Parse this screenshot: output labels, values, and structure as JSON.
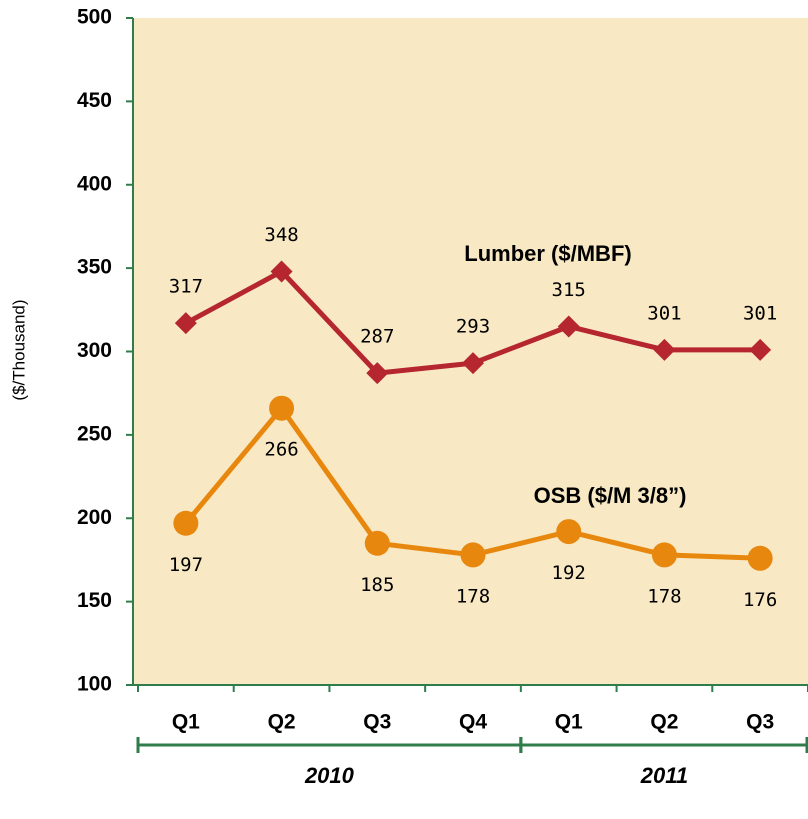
{
  "chart_data": {
    "type": "line",
    "y_axis_label": "($/Thousand)",
    "categories": [
      "Q1",
      "Q2",
      "Q3",
      "Q4",
      "Q1",
      "Q2",
      "Q3"
    ],
    "year_groups": [
      {
        "label": "2010",
        "count": 4
      },
      {
        "label": "2011",
        "count": 3
      }
    ],
    "series": [
      {
        "name": "Lumber ($/MBF)",
        "color": "#b5262e",
        "marker": "diamond",
        "label_position": "above",
        "values": [
          317,
          348,
          287,
          293,
          315,
          301,
          301
        ]
      },
      {
        "name": "OSB ($/M 3/8”)",
        "color": "#e8870e",
        "marker": "circle",
        "label_position": "below",
        "values": [
          197,
          266,
          185,
          178,
          192,
          178,
          176
        ]
      }
    ],
    "ylim": [
      100,
      500
    ],
    "yticks": [
      100,
      150,
      200,
      250,
      300,
      350,
      400,
      450,
      500
    ],
    "background": "#f8e9c4",
    "axis_color": "#2f7d4a"
  }
}
